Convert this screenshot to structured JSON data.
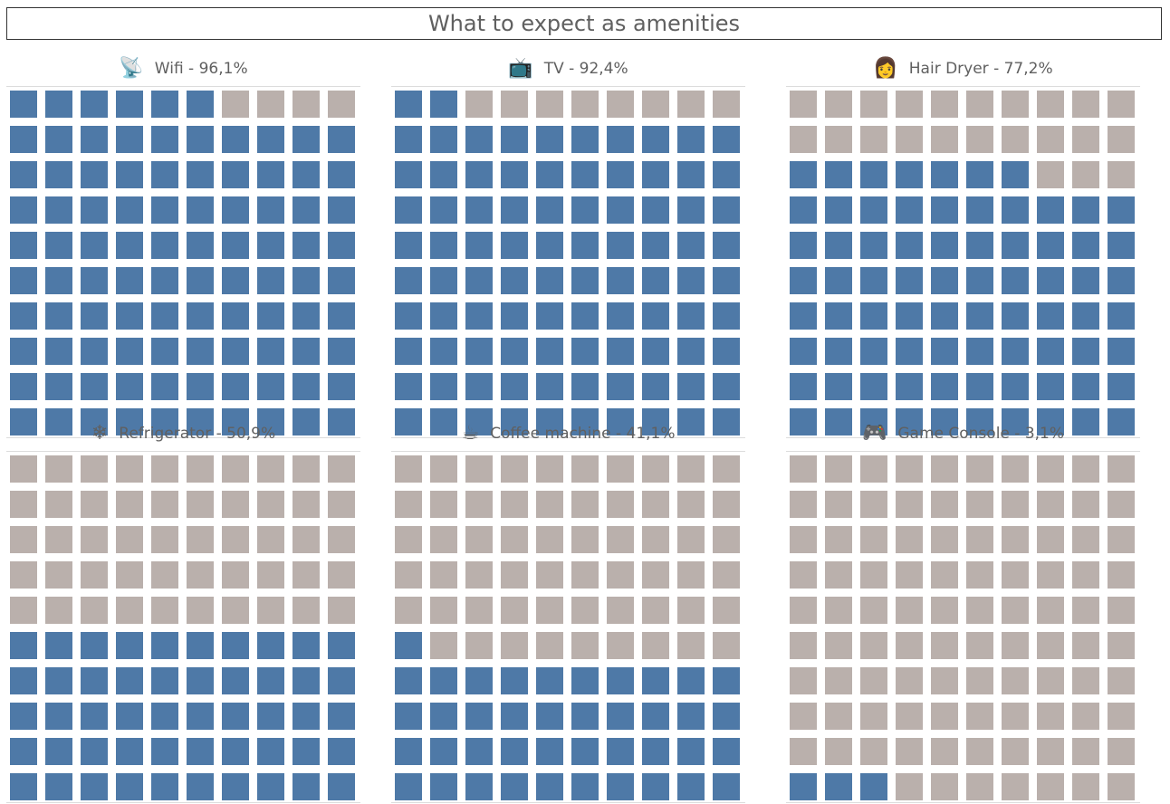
{
  "title": "What to expect as amenities",
  "colors": {
    "filled": "#4e79a7",
    "empty": "#bab0ac"
  },
  "chart_data": [
    {
      "type": "waffle",
      "name": "Wifi",
      "label": "Wifi - 96,1%",
      "icon": "satellite-antenna-icon",
      "icon_glyph": "📡",
      "value": 96.1,
      "filled_cells": 96,
      "total_cells": 100
    },
    {
      "type": "waffle",
      "name": "TV",
      "label": "TV - 92,4%",
      "icon": "television-icon",
      "icon_glyph": "📺",
      "value": 92.4,
      "filled_cells": 92,
      "total_cells": 100
    },
    {
      "type": "waffle",
      "name": "Hair Dryer",
      "label": "Hair Dryer  - 77,2%",
      "icon": "woman-face-icon",
      "icon_glyph": "👩",
      "value": 77.2,
      "filled_cells": 77,
      "total_cells": 100
    },
    {
      "type": "waffle",
      "name": "Refrigerator",
      "label": "Refrigerator - 50,9%",
      "icon": "snowflake-icon",
      "icon_glyph": "❄",
      "value": 50.9,
      "filled_cells": 50,
      "total_cells": 100
    },
    {
      "type": "waffle",
      "name": "Coffee machine",
      "label": "Coffee machine - 41,1%",
      "icon": "hot-beverage-icon",
      "icon_glyph": "☕",
      "value": 41.1,
      "filled_cells": 41,
      "total_cells": 100
    },
    {
      "type": "waffle",
      "name": "Game Console",
      "label": "Game Console - 3,1%",
      "icon": "game-controller-icon",
      "icon_glyph": "🎮",
      "value": 3.1,
      "filled_cells": 3,
      "total_cells": 100
    }
  ]
}
